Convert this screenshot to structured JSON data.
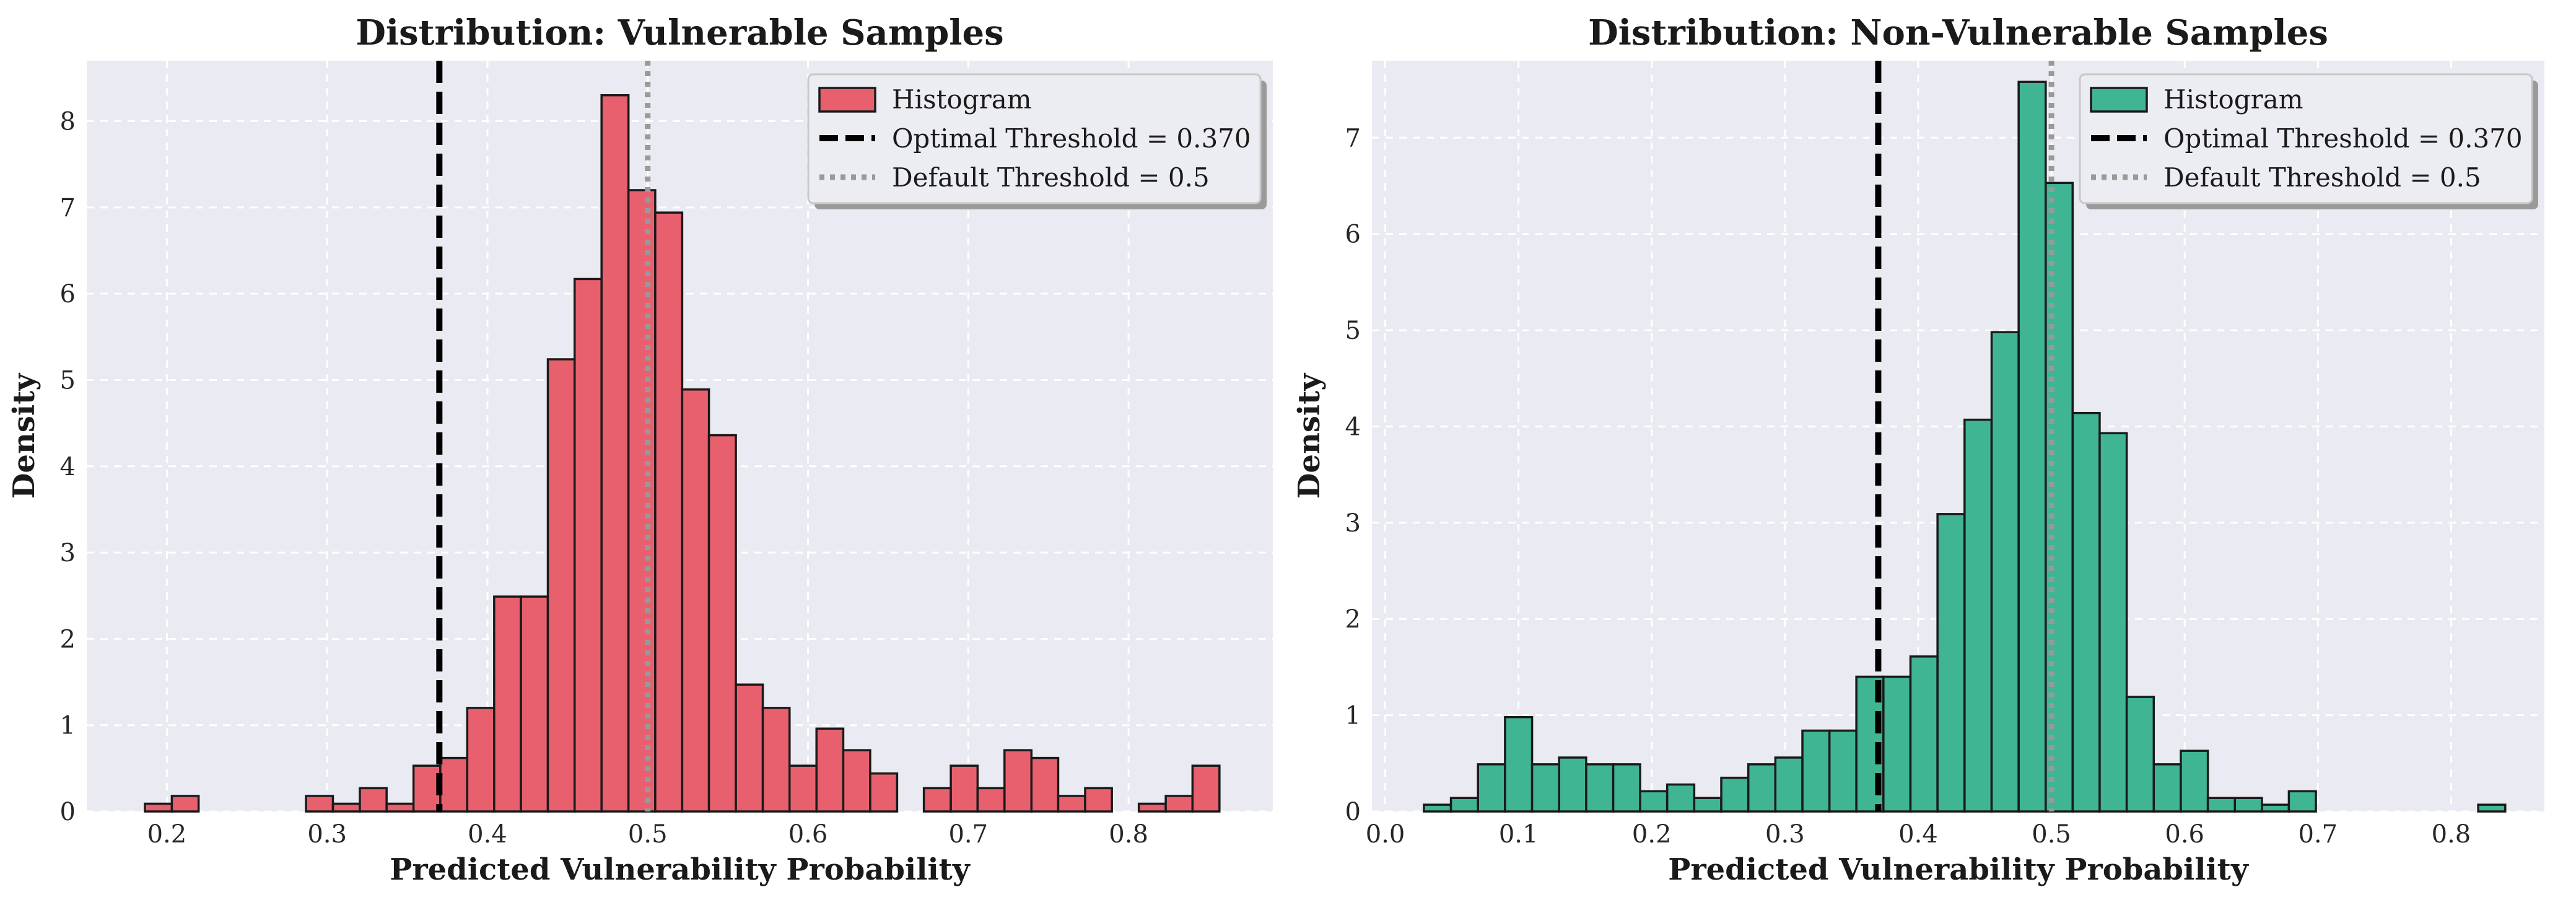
{
  "colors": {
    "plot_background": "#eaeaf2",
    "grid": "#ffffff",
    "vulnerable_bar": "#e8606e",
    "non_vulnerable_bar": "#3fb593",
    "bar_edge": "#1a1a1a",
    "optimal_line": "#000000",
    "default_line": "#999999"
  },
  "chart_data": [
    {
      "type": "bar",
      "title": "Distribution: Vulnerable Samples",
      "xlabel": "Predicted Vulnerability Probability",
      "ylabel": "Density",
      "xlim": [
        0.15,
        0.89
      ],
      "ylim": [
        0,
        8.7
      ],
      "xticks": [
        0.2,
        0.3,
        0.4,
        0.5,
        0.6,
        0.7,
        0.8
      ],
      "xtick_labels": [
        "0.2",
        "0.3",
        "0.4",
        "0.5",
        "0.6",
        "0.7",
        "0.8"
      ],
      "yticks": [
        0,
        1,
        2,
        3,
        4,
        5,
        6,
        7,
        8
      ],
      "ytick_labels": [
        "0",
        "1",
        "2",
        "3",
        "4",
        "5",
        "6",
        "7",
        "8"
      ],
      "grid": true,
      "legend_position": "top-right",
      "bin_width": 0.01676,
      "histogram": {
        "name": "Histogram",
        "bins": [
          {
            "x0": 0.1863,
            "x1": 0.2031,
            "density": 0.09
          },
          {
            "x0": 0.2031,
            "x1": 0.2198,
            "density": 0.18
          },
          {
            "x0": 0.2868,
            "x1": 0.3036,
            "density": 0.18
          },
          {
            "x0": 0.3036,
            "x1": 0.3204,
            "density": 0.09
          },
          {
            "x0": 0.3204,
            "x1": 0.3371,
            "density": 0.27
          },
          {
            "x0": 0.3371,
            "x1": 0.3539,
            "density": 0.09
          },
          {
            "x0": 0.3539,
            "x1": 0.3706,
            "density": 0.53
          },
          {
            "x0": 0.3706,
            "x1": 0.3874,
            "density": 0.62
          },
          {
            "x0": 0.3874,
            "x1": 0.4042,
            "density": 1.2
          },
          {
            "x0": 0.4042,
            "x1": 0.4209,
            "density": 2.49
          },
          {
            "x0": 0.4209,
            "x1": 0.4377,
            "density": 2.49
          },
          {
            "x0": 0.4377,
            "x1": 0.4544,
            "density": 5.24
          },
          {
            "x0": 0.4544,
            "x1": 0.4712,
            "density": 6.17
          },
          {
            "x0": 0.4712,
            "x1": 0.488,
            "density": 8.3
          },
          {
            "x0": 0.488,
            "x1": 0.5047,
            "density": 7.2
          },
          {
            "x0": 0.5047,
            "x1": 0.5215,
            "density": 6.94
          },
          {
            "x0": 0.5215,
            "x1": 0.5382,
            "density": 4.89
          },
          {
            "x0": 0.5382,
            "x1": 0.555,
            "density": 4.36
          },
          {
            "x0": 0.555,
            "x1": 0.5718,
            "density": 1.47
          },
          {
            "x0": 0.5718,
            "x1": 0.5885,
            "density": 1.2
          },
          {
            "x0": 0.5885,
            "x1": 0.6053,
            "density": 0.53
          },
          {
            "x0": 0.6053,
            "x1": 0.622,
            "density": 0.96
          },
          {
            "x0": 0.622,
            "x1": 0.6388,
            "density": 0.71
          },
          {
            "x0": 0.6388,
            "x1": 0.6556,
            "density": 0.44
          },
          {
            "x0": 0.6723,
            "x1": 0.6891,
            "density": 0.27
          },
          {
            "x0": 0.6891,
            "x1": 0.7058,
            "density": 0.53
          },
          {
            "x0": 0.7058,
            "x1": 0.7226,
            "density": 0.27
          },
          {
            "x0": 0.7226,
            "x1": 0.7394,
            "density": 0.71
          },
          {
            "x0": 0.7394,
            "x1": 0.7561,
            "density": 0.62
          },
          {
            "x0": 0.7561,
            "x1": 0.7729,
            "density": 0.18
          },
          {
            "x0": 0.7729,
            "x1": 0.7896,
            "density": 0.27
          },
          {
            "x0": 0.8064,
            "x1": 0.8232,
            "density": 0.09
          },
          {
            "x0": 0.8232,
            "x1": 0.8399,
            "density": 0.18
          },
          {
            "x0": 0.8399,
            "x1": 0.8567,
            "density": 0.53
          }
        ]
      },
      "lines": [
        {
          "name": "Optimal Threshold = 0.370",
          "x": 0.37,
          "style": "dashed"
        },
        {
          "name": "Default Threshold = 0.5",
          "x": 0.5,
          "style": "dotted"
        }
      ]
    },
    {
      "type": "bar",
      "title": "Distribution: Non-Vulnerable Samples",
      "xlabel": "Predicted Vulnerability Probability",
      "ylabel": "Density",
      "xlim": [
        -0.01,
        0.87
      ],
      "ylim": [
        0,
        7.8
      ],
      "xticks": [
        0.0,
        0.1,
        0.2,
        0.3,
        0.4,
        0.5,
        0.6,
        0.7,
        0.8
      ],
      "xtick_labels": [
        "0.0",
        "0.1",
        "0.2",
        "0.3",
        "0.4",
        "0.5",
        "0.6",
        "0.7",
        "0.8"
      ],
      "yticks": [
        0,
        1,
        2,
        3,
        4,
        5,
        6,
        7
      ],
      "ytick_labels": [
        "0",
        "1",
        "2",
        "3",
        "4",
        "5",
        "6",
        "7"
      ],
      "grid": true,
      "legend_position": "top-right",
      "bin_width": 0.02029,
      "histogram": {
        "name": "Histogram",
        "bins": [
          {
            "x0": 0.029,
            "x1": 0.0493,
            "density": 0.07
          },
          {
            "x0": 0.0493,
            "x1": 0.0696,
            "density": 0.14
          },
          {
            "x0": 0.0696,
            "x1": 0.0899,
            "density": 0.49
          },
          {
            "x0": 0.0899,
            "x1": 0.1102,
            "density": 0.98
          },
          {
            "x0": 0.1102,
            "x1": 0.1305,
            "density": 0.49
          },
          {
            "x0": 0.1305,
            "x1": 0.1508,
            "density": 0.56
          },
          {
            "x0": 0.1508,
            "x1": 0.1711,
            "density": 0.49
          },
          {
            "x0": 0.1711,
            "x1": 0.1913,
            "density": 0.49
          },
          {
            "x0": 0.1913,
            "x1": 0.2116,
            "density": 0.21
          },
          {
            "x0": 0.2116,
            "x1": 0.2319,
            "density": 0.28
          },
          {
            "x0": 0.2319,
            "x1": 0.2522,
            "density": 0.14
          },
          {
            "x0": 0.2522,
            "x1": 0.2725,
            "density": 0.35
          },
          {
            "x0": 0.2725,
            "x1": 0.2928,
            "density": 0.49
          },
          {
            "x0": 0.2928,
            "x1": 0.3131,
            "density": 0.56
          },
          {
            "x0": 0.3131,
            "x1": 0.3334,
            "density": 0.84
          },
          {
            "x0": 0.3334,
            "x1": 0.3536,
            "density": 0.84
          },
          {
            "x0": 0.3536,
            "x1": 0.3739,
            "density": 1.4
          },
          {
            "x0": 0.3739,
            "x1": 0.3942,
            "density": 1.4
          },
          {
            "x0": 0.3942,
            "x1": 0.4145,
            "density": 1.61
          },
          {
            "x0": 0.4145,
            "x1": 0.4348,
            "density": 3.09
          },
          {
            "x0": 0.4348,
            "x1": 0.4551,
            "density": 4.07
          },
          {
            "x0": 0.4551,
            "x1": 0.4754,
            "density": 4.98
          },
          {
            "x0": 0.4754,
            "x1": 0.4957,
            "density": 7.58
          },
          {
            "x0": 0.4957,
            "x1": 0.5159,
            "density": 6.53
          },
          {
            "x0": 0.5159,
            "x1": 0.5362,
            "density": 4.14
          },
          {
            "x0": 0.5362,
            "x1": 0.5565,
            "density": 3.93
          },
          {
            "x0": 0.5565,
            "x1": 0.5768,
            "density": 1.19
          },
          {
            "x0": 0.5768,
            "x1": 0.5971,
            "density": 0.49
          },
          {
            "x0": 0.5971,
            "x1": 0.6174,
            "density": 0.63
          },
          {
            "x0": 0.6174,
            "x1": 0.6377,
            "density": 0.14
          },
          {
            "x0": 0.6377,
            "x1": 0.658,
            "density": 0.14
          },
          {
            "x0": 0.658,
            "x1": 0.6782,
            "density": 0.07
          },
          {
            "x0": 0.6782,
            "x1": 0.6985,
            "density": 0.21
          },
          {
            "x0": 0.8203,
            "x1": 0.8406,
            "density": 0.07
          }
        ]
      },
      "lines": [
        {
          "name": "Optimal Threshold = 0.370",
          "x": 0.37,
          "style": "dashed"
        },
        {
          "name": "Default Threshold = 0.5",
          "x": 0.5,
          "style": "dotted"
        }
      ]
    }
  ]
}
